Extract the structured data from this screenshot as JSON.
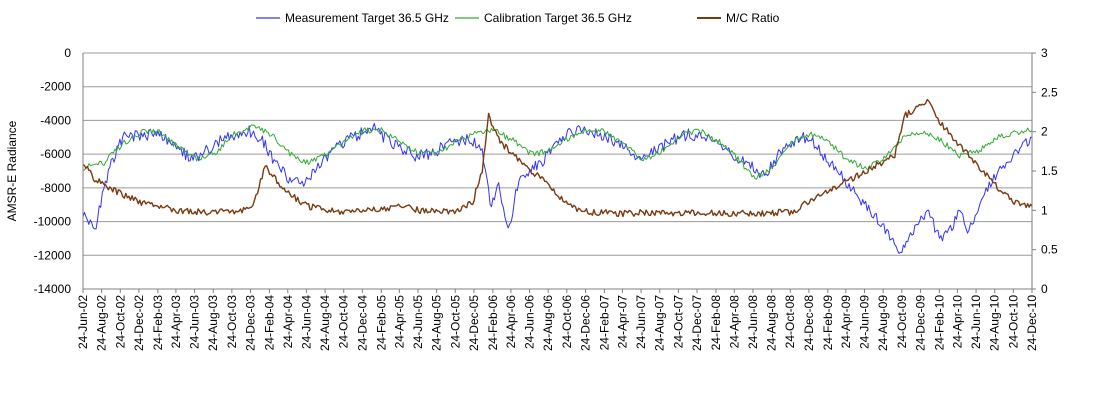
{
  "chart_data": {
    "type": "line",
    "title": "",
    "ylabel": "AMSR-E Radiance",
    "ylabel_right": "",
    "xlabel": "",
    "ylim": [
      -14000,
      0
    ],
    "ylim_right": [
      0,
      3
    ],
    "yticks": [
      0,
      -2000,
      -4000,
      -6000,
      -8000,
      -10000,
      -12000,
      -14000
    ],
    "yticks_right": [
      0,
      0.5,
      1,
      1.5,
      2,
      2.5,
      3
    ],
    "grid": "horizontal",
    "legend_position": "top",
    "x_range": [
      "2002-06-24",
      "2010-12-24"
    ],
    "x_tick_labels": [
      "24-Jun-02",
      "24-Aug-02",
      "24-Oct-02",
      "24-Dec-02",
      "24-Feb-03",
      "24-Apr-03",
      "24-Jun-03",
      "24-Aug-03",
      "24-Oct-03",
      "24-Dec-03",
      "24-Feb-04",
      "24-Apr-04",
      "24-Jun-04",
      "24-Aug-04",
      "24-Oct-04",
      "24-Dec-04",
      "24-Feb-05",
      "24-Apr-05",
      "24-Jun-05",
      "24-Aug-05",
      "24-Oct-05",
      "24-Dec-05",
      "24-Feb-06",
      "24-Apr-06",
      "24-Jun-06",
      "24-Aug-06",
      "24-Oct-06",
      "24-Dec-06",
      "24-Feb-07",
      "24-Apr-07",
      "24-Jun-07",
      "24-Aug-07",
      "24-Oct-07",
      "24-Dec-07",
      "24-Feb-08",
      "24-Apr-08",
      "24-Jun-08",
      "24-Aug-08",
      "24-Oct-08",
      "24-Dec-08",
      "24-Feb-09",
      "24-Apr-09",
      "24-Jun-09",
      "24-Aug-09",
      "24-Oct-09",
      "24-Dec-09",
      "24-Feb-10",
      "24-Apr-10",
      "24-Jun-10",
      "24-Aug-10",
      "24-Oct-10",
      "24-Dec-10"
    ],
    "series": [
      {
        "name": "Measurement Target 36.5 GHz",
        "color": "#3333ff",
        "axis": "left",
        "x": [
          "2002-06-24",
          "2002-08-01",
          "2002-09-15",
          "2002-11-01",
          "2003-01-01",
          "2003-03-01",
          "2003-05-01",
          "2003-06-24",
          "2003-08-01",
          "2003-10-01",
          "2003-12-15",
          "2004-02-01",
          "2004-03-15",
          "2004-05-01",
          "2004-06-15",
          "2004-08-01",
          "2004-10-01",
          "2004-12-01",
          "2005-02-01",
          "2005-04-01",
          "2005-06-15",
          "2005-08-01",
          "2005-10-01",
          "2005-12-01",
          "2006-01-20",
          "2006-02-15",
          "2006-03-15",
          "2006-04-15",
          "2006-05-15",
          "2006-06-15",
          "2006-08-01",
          "2006-10-01",
          "2006-12-01",
          "2007-02-01",
          "2007-04-01",
          "2007-06-15",
          "2007-08-01",
          "2007-10-01",
          "2007-12-01",
          "2008-02-01",
          "2008-04-01",
          "2008-06-01",
          "2008-08-01",
          "2008-10-01",
          "2008-12-01",
          "2009-01-01",
          "2009-09-15",
          "2009-10-15",
          "2009-12-01",
          "2010-01-15",
          "2010-03-01",
          "2010-04-01",
          "2010-05-01",
          "2010-06-01",
          "2010-07-01",
          "2010-08-01",
          "2010-10-01",
          "2010-12-24"
        ],
        "values": [
          -9500,
          -10500,
          -7000,
          -5000,
          -4900,
          -4800,
          -5800,
          -6300,
          -5800,
          -5000,
          -4600,
          -5200,
          -6500,
          -7500,
          -7800,
          -6800,
          -5600,
          -4900,
          -4500,
          -5400,
          -6100,
          -6000,
          -5400,
          -5100,
          -5600,
          -9000,
          -8000,
          -10500,
          -8000,
          -7000,
          -6600,
          -5000,
          -4600,
          -4700,
          -5300,
          -6200,
          -5900,
          -5200,
          -4800,
          -5000,
          -5800,
          -6600,
          -7200,
          -5600,
          -4900,
          -5200,
          -10800,
          -12000,
          -10500,
          -9500,
          -11000,
          -10500,
          -9500,
          -10500,
          -9500,
          -8000,
          -6500,
          -5000
        ]
      },
      {
        "name": "Calibration Target 36.5 GHz",
        "color": "#33aa33",
        "axis": "left",
        "x": [
          "2002-06-24",
          "2002-09-01",
          "2002-11-01",
          "2003-01-01",
          "2003-03-01",
          "2003-05-01",
          "2003-07-01",
          "2003-09-01",
          "2003-11-01",
          "2004-01-01",
          "2004-03-01",
          "2004-05-01",
          "2004-07-01",
          "2004-09-01",
          "2004-11-01",
          "2005-01-01",
          "2005-03-01",
          "2005-05-01",
          "2005-07-01",
          "2005-09-01",
          "2005-11-01",
          "2006-01-01",
          "2006-03-01",
          "2006-05-01",
          "2006-07-01",
          "2006-09-01",
          "2006-11-01",
          "2007-01-01",
          "2007-03-01",
          "2007-05-01",
          "2007-07-01",
          "2007-09-01",
          "2007-11-01",
          "2008-01-01",
          "2008-03-01",
          "2008-05-01",
          "2008-07-01",
          "2008-09-01",
          "2008-11-01",
          "2009-01-01",
          "2009-03-01",
          "2009-05-01",
          "2009-07-01",
          "2009-09-01",
          "2009-11-01",
          "2010-01-01",
          "2010-03-01",
          "2010-05-01",
          "2010-07-01",
          "2010-09-01",
          "2010-11-01",
          "2010-12-24"
        ],
        "values": [
          -6800,
          -6500,
          -5400,
          -4700,
          -4700,
          -5600,
          -6300,
          -5900,
          -4800,
          -4400,
          -4800,
          -6000,
          -6500,
          -6000,
          -5200,
          -4600,
          -4600,
          -5300,
          -6000,
          -5900,
          -5200,
          -4700,
          -4600,
          -5200,
          -6000,
          -5800,
          -5000,
          -4500,
          -4700,
          -5500,
          -6300,
          -5800,
          -4900,
          -4600,
          -5200,
          -6200,
          -7400,
          -6800,
          -5200,
          -4800,
          -5300,
          -6400,
          -6800,
          -6200,
          -5000,
          -4700,
          -5200,
          -6100,
          -5800,
          -5000,
          -4700,
          -4600
        ]
      },
      {
        "name": "M/C Ratio",
        "color": "#7a3a10",
        "axis": "right",
        "x": [
          "2002-06-24",
          "2002-08-01",
          "2002-09-15",
          "2002-11-01",
          "2003-01-01",
          "2003-03-01",
          "2003-05-01",
          "2003-07-01",
          "2003-09-01",
          "2003-11-01",
          "2004-01-01",
          "2004-02-10",
          "2004-03-15",
          "2004-05-01",
          "2004-07-01",
          "2004-09-01",
          "2004-11-01",
          "2005-01-01",
          "2005-03-01",
          "2005-05-01",
          "2005-07-01",
          "2005-09-01",
          "2005-11-01",
          "2005-12-20",
          "2006-01-20",
          "2006-02-10",
          "2006-03-15",
          "2006-05-01",
          "2006-07-01",
          "2006-09-01",
          "2006-11-01",
          "2007-01-01",
          "2007-03-01",
          "2007-05-01",
          "2007-07-01",
          "2007-09-01",
          "2007-11-01",
          "2008-01-01",
          "2008-03-01",
          "2008-05-01",
          "2008-07-01",
          "2008-09-01",
          "2008-11-01",
          "2008-12-20",
          "2009-10-01",
          "2009-11-01",
          "2009-12-15",
          "2010-01-15",
          "2010-03-01",
          "2010-04-15",
          "2010-06-01",
          "2010-07-15",
          "2010-09-01",
          "2010-11-01",
          "2010-12-24"
        ],
        "values": [
          1.6,
          1.4,
          1.3,
          1.2,
          1.1,
          1.05,
          1.0,
          0.98,
          0.98,
          0.97,
          1.05,
          1.55,
          1.4,
          1.2,
          1.05,
          1.0,
          0.98,
          1.0,
          1.02,
          1.05,
          1.0,
          0.98,
          1.0,
          1.1,
          1.5,
          2.2,
          1.9,
          1.7,
          1.5,
          1.3,
          1.05,
          0.98,
          0.97,
          0.96,
          0.97,
          0.96,
          0.97,
          0.96,
          0.97,
          0.96,
          0.96,
          0.97,
          0.98,
          1.1,
          1.7,
          2.2,
          2.3,
          2.4,
          2.1,
          1.9,
          1.7,
          1.5,
          1.3,
          1.1,
          1.05
        ]
      }
    ]
  }
}
